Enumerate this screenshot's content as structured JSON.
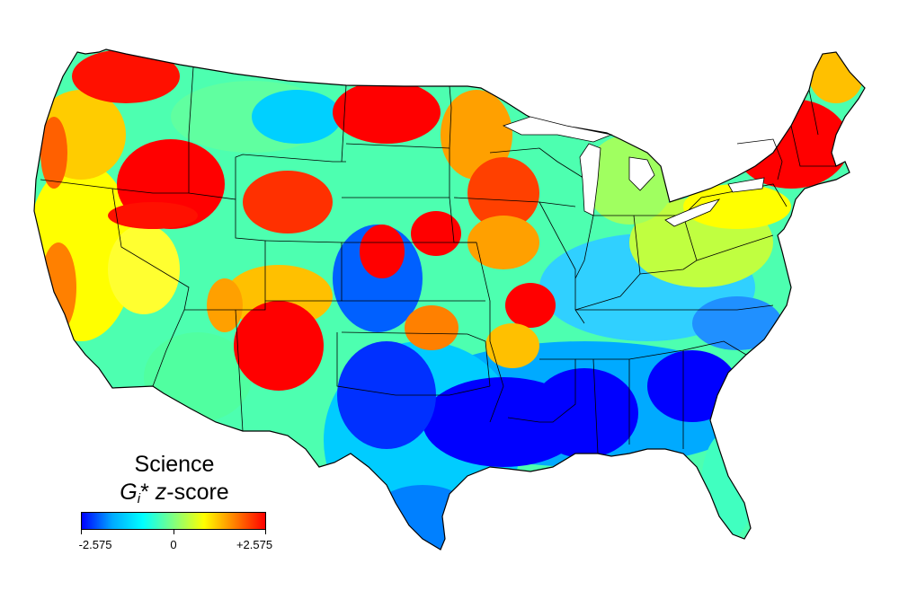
{
  "legend": {
    "title": "Science",
    "subtitle_G": "G",
    "subtitle_i": "i",
    "subtitle_star": "*",
    "subtitle_z": " z",
    "subtitle_rest": "-score",
    "min_label": "-2.575",
    "mid_label": "0",
    "max_label": "+2.575",
    "min_value": -2.575,
    "mid_value": 0,
    "max_value": 2.575,
    "colors": [
      "#0000ff",
      "#00aaff",
      "#00ffff",
      "#80ff80",
      "#ffff00",
      "#ff8000",
      "#ff0000"
    ]
  },
  "map": {
    "land_base_color": "#4dffb0",
    "boundary_color": "#000000"
  }
}
